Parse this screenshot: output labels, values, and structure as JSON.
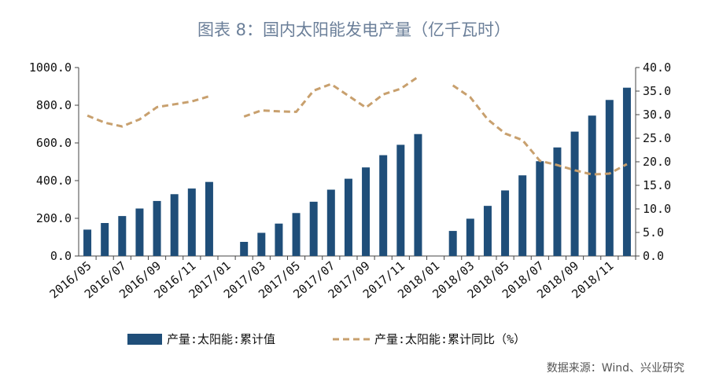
{
  "title": "图表 8：国内太阳能发电产量（亿千瓦时）",
  "source": "数据来源：Wind、兴业研究",
  "colors": {
    "bar": "#1f4e79",
    "line": "#c8a06e",
    "axis": "#444444",
    "title": "#6b7f99"
  },
  "chart_data": {
    "type": "bar",
    "categories": [
      "2016/05",
      "2016/06",
      "2016/07",
      "2016/08",
      "2016/09",
      "2016/10",
      "2016/11",
      "2016/12",
      "2017/01",
      "2017/02",
      "2017/03",
      "2017/04",
      "2017/05",
      "2017/06",
      "2017/07",
      "2017/08",
      "2017/09",
      "2017/10",
      "2017/11",
      "2017/12",
      "2018/01",
      "2018/02",
      "2018/03",
      "2018/04",
      "2018/05",
      "2018/06",
      "2018/07",
      "2018/08",
      "2018/09",
      "2018/10",
      "2018/11",
      "2018/12"
    ],
    "x_tick_labels": [
      "2016/05",
      "2016/07",
      "2016/09",
      "2016/11",
      "2017/01",
      "2017/03",
      "2017/05",
      "2017/07",
      "2017/09",
      "2017/11",
      "2018/01",
      "2018/03",
      "2018/05",
      "2018/07",
      "2018/09",
      "2018/11"
    ],
    "y_left": {
      "ylim": [
        0,
        1000
      ],
      "ticks": [
        "0.0",
        "200.0",
        "400.0",
        "600.0",
        "800.0",
        "1000.0"
      ]
    },
    "y_right": {
      "ylim": [
        0,
        40
      ],
      "ticks": [
        "0.0",
        "5.0",
        "10.0",
        "15.0",
        "20.0",
        "25.0",
        "30.0",
        "35.0",
        "40.0"
      ]
    },
    "series": [
      {
        "name": "产量:太阳能:累计值",
        "type": "bar",
        "axis": "left",
        "values": [
          140,
          175,
          212,
          252,
          292,
          328,
          358,
          393,
          null,
          75,
          123,
          172,
          228,
          288,
          352,
          410,
          470,
          535,
          590,
          647,
          null,
          133,
          198,
          266,
          348,
          428,
          503,
          576,
          660,
          745,
          828,
          893
        ]
      },
      {
        "name": "产量:太阳能:累计同比（%）",
        "type": "line",
        "style": "dashed",
        "axis": "right",
        "values": [
          29.8,
          28.3,
          27.5,
          29.0,
          31.6,
          32.2,
          32.8,
          33.9,
          null,
          29.6,
          30.9,
          30.7,
          30.6,
          35.1,
          36.5,
          34.0,
          31.5,
          34.3,
          35.5,
          38.0,
          null,
          36.2,
          33.7,
          29.0,
          26.0,
          24.6,
          20.2,
          19.3,
          18.2,
          17.3,
          17.5,
          19.5
        ]
      }
    ]
  }
}
